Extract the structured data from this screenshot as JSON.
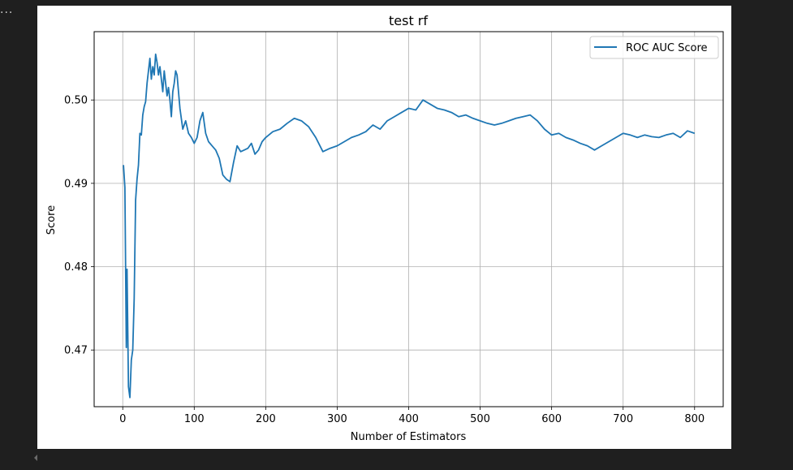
{
  "ui": {
    "ellipsis": "..."
  },
  "colors": {
    "series": "#1f77b4",
    "grid": "#b0b0b0",
    "axes": "#000000",
    "bg": "#1f1f1f"
  },
  "chart_data": {
    "type": "line",
    "title": "test rf",
    "xlabel": "Number of Estimators",
    "ylabel": "Score",
    "xlim": [
      -40,
      840
    ],
    "ylim": [
      0.4632,
      0.5082
    ],
    "xticks": [
      0,
      100,
      200,
      300,
      400,
      500,
      600,
      700,
      800
    ],
    "yticks": [
      0.47,
      0.48,
      0.49,
      0.5
    ],
    "ytick_labels": [
      "0.47",
      "0.48",
      "0.49",
      "0.50"
    ],
    "grid": true,
    "legend": "top-right",
    "series": [
      {
        "name": "ROC AUC Score",
        "x": [
          1,
          3,
          5,
          6,
          8,
          10,
          12,
          14,
          16,
          18,
          20,
          22,
          24,
          26,
          28,
          30,
          32,
          34,
          36,
          38,
          40,
          42,
          44,
          46,
          48,
          50,
          52,
          54,
          56,
          58,
          60,
          62,
          64,
          66,
          68,
          70,
          72,
          74,
          76,
          78,
          80,
          84,
          88,
          92,
          96,
          100,
          104,
          108,
          112,
          116,
          120,
          125,
          130,
          135,
          140,
          145,
          150,
          155,
          160,
          165,
          170,
          175,
          180,
          185,
          190,
          195,
          200,
          210,
          220,
          230,
          240,
          250,
          260,
          270,
          280,
          290,
          300,
          310,
          320,
          330,
          340,
          350,
          360,
          370,
          380,
          390,
          400,
          410,
          420,
          430,
          440,
          450,
          460,
          470,
          480,
          490,
          500,
          510,
          520,
          530,
          540,
          550,
          560,
          570,
          580,
          590,
          600,
          610,
          620,
          630,
          640,
          650,
          660,
          670,
          680,
          690,
          700,
          710,
          720,
          730,
          740,
          750,
          760,
          770,
          780,
          790,
          800
        ],
        "y": [
          0.4922,
          0.4895,
          0.4703,
          0.4797,
          0.4656,
          0.4643,
          0.4688,
          0.47,
          0.4762,
          0.488,
          0.4905,
          0.4922,
          0.496,
          0.4958,
          0.4982,
          0.4992,
          0.4998,
          0.502,
          0.5035,
          0.505,
          0.5025,
          0.504,
          0.503,
          0.5055,
          0.5045,
          0.503,
          0.504,
          0.5025,
          0.501,
          0.5035,
          0.502,
          0.5005,
          0.5015,
          0.5,
          0.498,
          0.501,
          0.502,
          0.5035,
          0.503,
          0.501,
          0.499,
          0.4965,
          0.4975,
          0.496,
          0.4955,
          0.4948,
          0.4955,
          0.4975,
          0.4985,
          0.496,
          0.495,
          0.4945,
          0.494,
          0.493,
          0.491,
          0.4905,
          0.4902,
          0.4925,
          0.4945,
          0.4938,
          0.494,
          0.4942,
          0.4948,
          0.4935,
          0.494,
          0.495,
          0.4955,
          0.4962,
          0.4965,
          0.4972,
          0.4978,
          0.4975,
          0.4968,
          0.4955,
          0.4938,
          0.4942,
          0.4945,
          0.495,
          0.4955,
          0.4958,
          0.4962,
          0.497,
          0.4965,
          0.4975,
          0.498,
          0.4985,
          0.499,
          0.4988,
          0.5,
          0.4995,
          0.499,
          0.4988,
          0.4985,
          0.498,
          0.4982,
          0.4978,
          0.4975,
          0.4972,
          0.497,
          0.4972,
          0.4975,
          0.4978,
          0.498,
          0.4982,
          0.4975,
          0.4965,
          0.4958,
          0.496,
          0.4955,
          0.4952,
          0.4948,
          0.4945,
          0.494,
          0.4945,
          0.495,
          0.4955,
          0.496,
          0.4958,
          0.4955,
          0.4958,
          0.4956,
          0.4955,
          0.4958,
          0.496,
          0.4955,
          0.4963,
          0.496
        ]
      }
    ]
  }
}
